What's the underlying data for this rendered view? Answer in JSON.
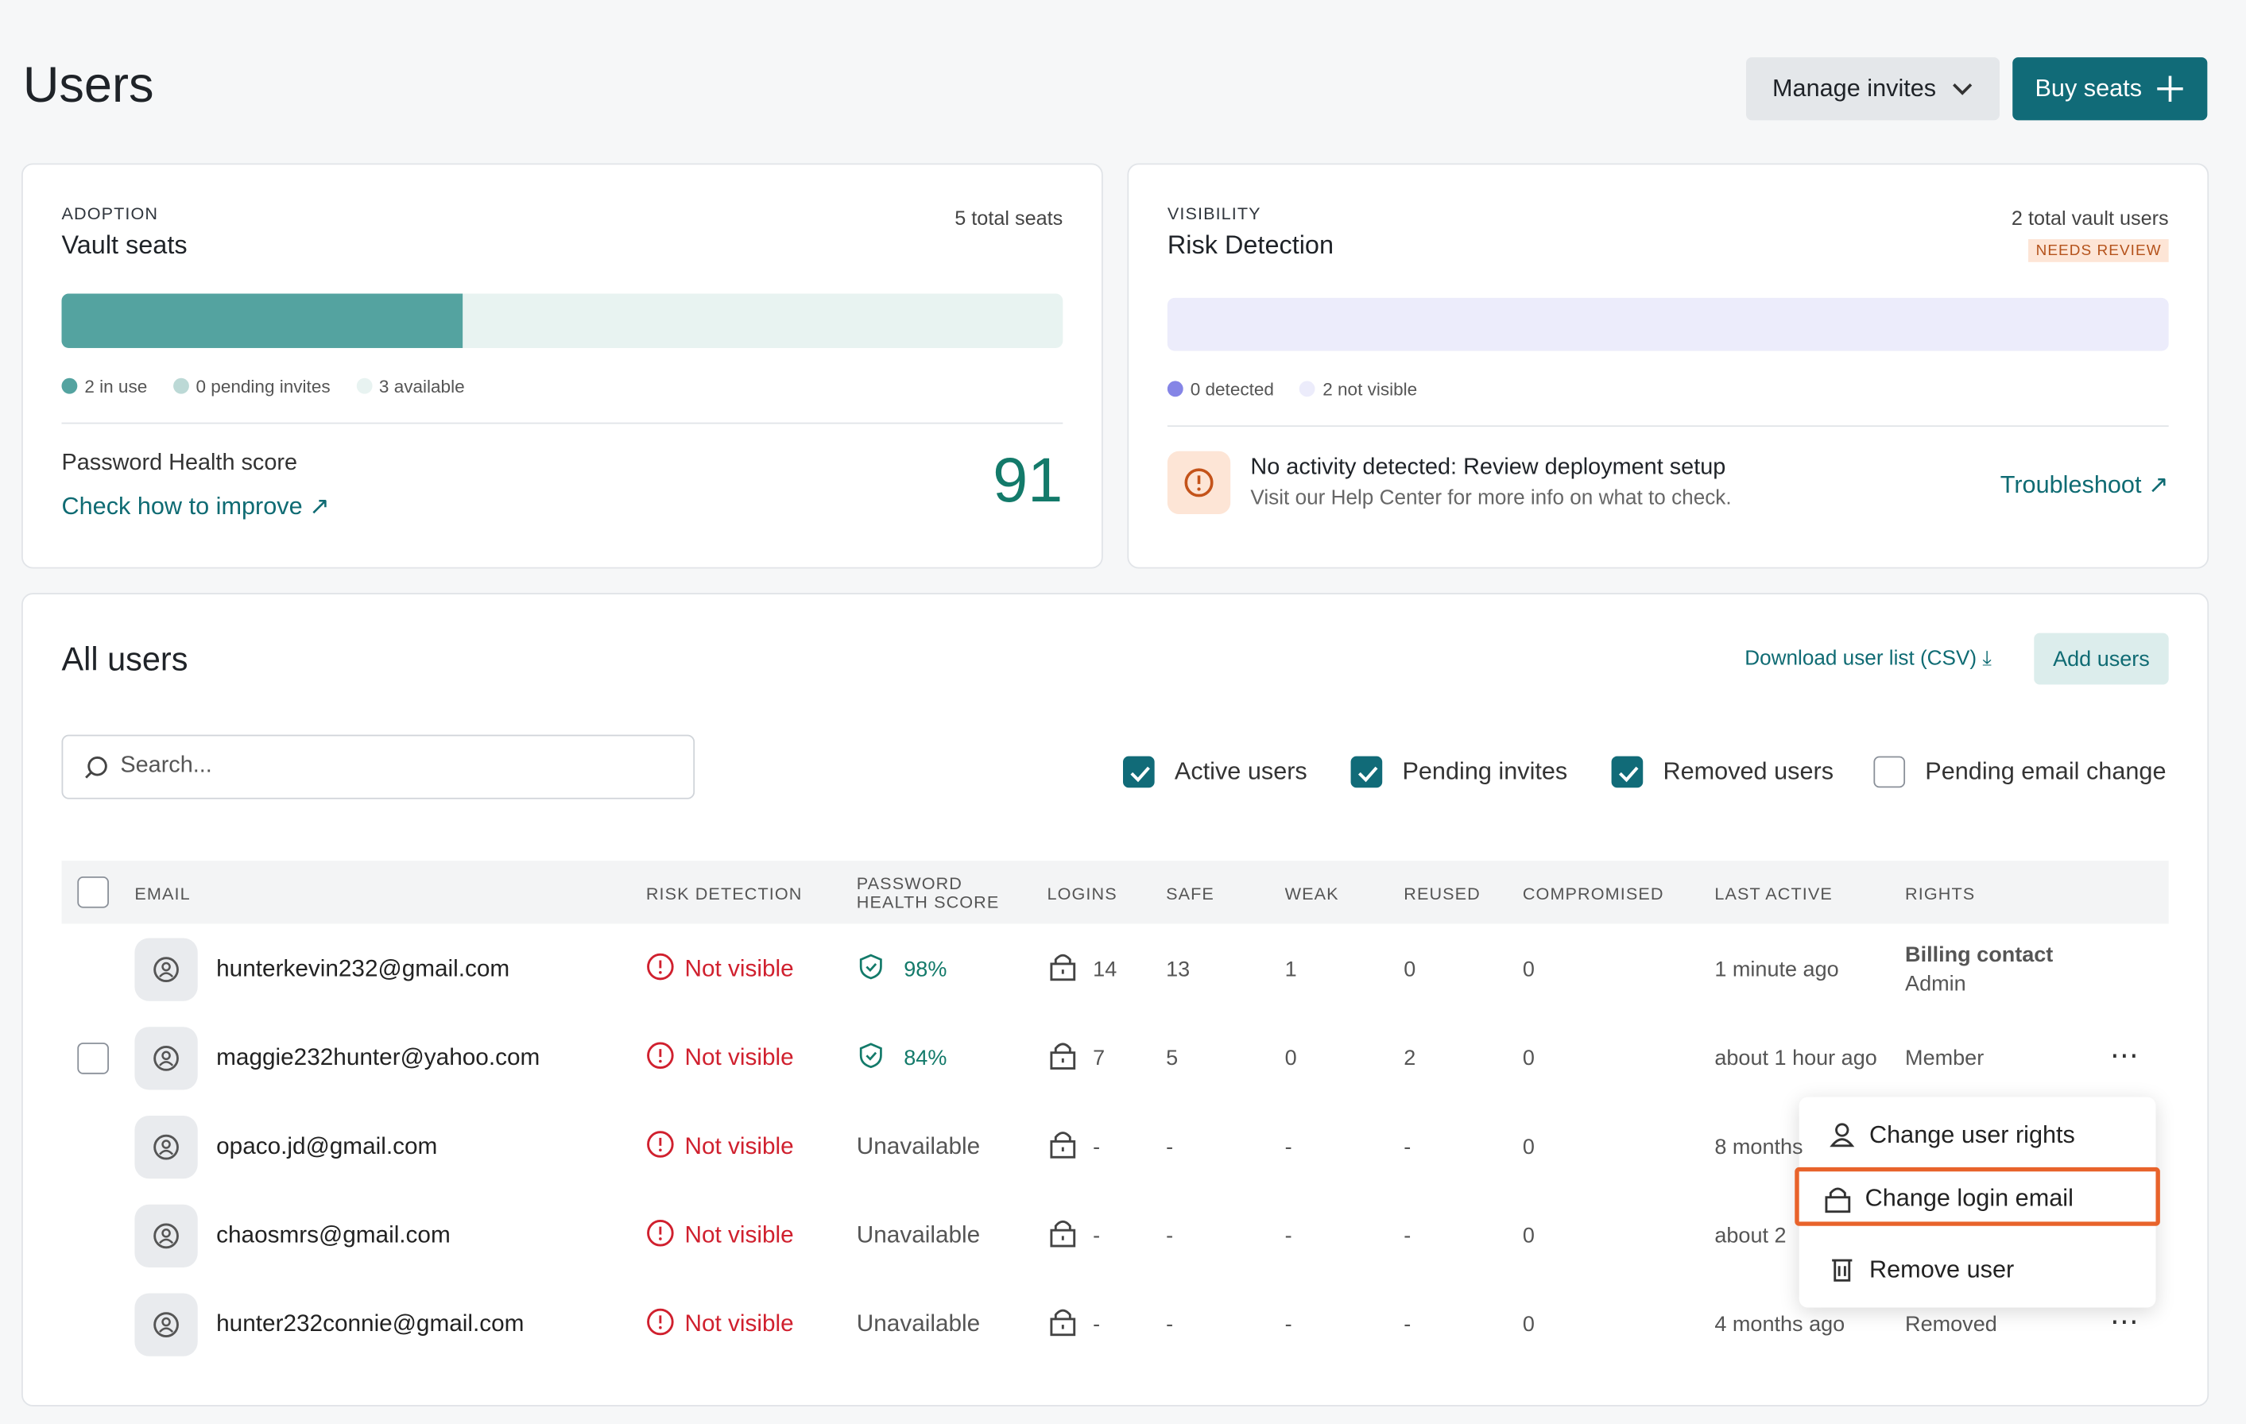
{
  "header": {
    "title": "Users",
    "manage_invites": "Manage invites",
    "buy_seats": "Buy seats"
  },
  "adoption": {
    "label": "ADOPTION",
    "title": "Vault seats",
    "total": "5 total seats",
    "legend": [
      "2 in use",
      "0 pending invites",
      "3 available"
    ],
    "health_label": "Password Health score",
    "health_link": "Check how to improve",
    "health_score": "91"
  },
  "visibility": {
    "label": "VISIBILITY",
    "title": "Risk Detection",
    "total": "2 total vault users",
    "badge": "NEEDS REVIEW",
    "legend": [
      "0 detected",
      "2 not visible"
    ],
    "alert_title": "No activity detected: Review deployment setup",
    "alert_text": "Visit our Help Center for more info on what to check.",
    "link": "Troubleshoot"
  },
  "users": {
    "title": "All users",
    "download": "Download user list (CSV)",
    "add": "Add users",
    "search": "Search...",
    "filters": [
      {
        "label": "Active users",
        "checked": true
      },
      {
        "label": "Pending invites",
        "checked": true
      },
      {
        "label": "Removed users",
        "checked": true
      },
      {
        "label": "Pending email change",
        "checked": false
      }
    ],
    "columns": [
      "EMAIL",
      "RISK DETECTION",
      "PASSWORD HEALTH SCORE",
      "LOGINS",
      "SAFE",
      "WEAK",
      "REUSED",
      "COMPROMISED",
      "LAST ACTIVE",
      "RIGHTS"
    ],
    "rows": [
      {
        "email": "hunterkevin232@gmail.com",
        "risk": "Not visible",
        "health": "98%",
        "logins": "14",
        "safe": "13",
        "weak": "1",
        "reused": "0",
        "compromised": "0",
        "last_active": "1 minute ago",
        "rights": "Billing contact",
        "role": "Admin"
      },
      {
        "email": "maggie232hunter@yahoo.com",
        "risk": "Not visible",
        "health": "84%",
        "logins": "7",
        "safe": "5",
        "weak": "0",
        "reused": "2",
        "compromised": "0",
        "last_active": "about 1 hour ago",
        "rights": "Member",
        "role": null
      },
      {
        "email": "opaco.jd@gmail.com",
        "risk": "Not visible",
        "health": "Unavailable",
        "logins": "-",
        "safe": "-",
        "weak": "-",
        "reused": "-",
        "compromised": "0",
        "last_active": "8 months",
        "rights": null,
        "role": null
      },
      {
        "email": "chaosmrs@gmail.com",
        "risk": "Not visible",
        "health": "Unavailable",
        "logins": "-",
        "safe": "-",
        "weak": "-",
        "reused": "-",
        "compromised": "0",
        "last_active": "about 2",
        "rights": null,
        "role": null
      },
      {
        "email": "hunter232connie@gmail.com",
        "risk": "Not visible",
        "health": "Unavailable",
        "logins": "-",
        "safe": "-",
        "weak": "-",
        "reused": "-",
        "compromised": "0",
        "last_active": "4 months ago",
        "rights": "Removed",
        "role": null
      }
    ],
    "menu": [
      "Change user rights",
      "Change login email",
      "Remove user"
    ]
  }
}
